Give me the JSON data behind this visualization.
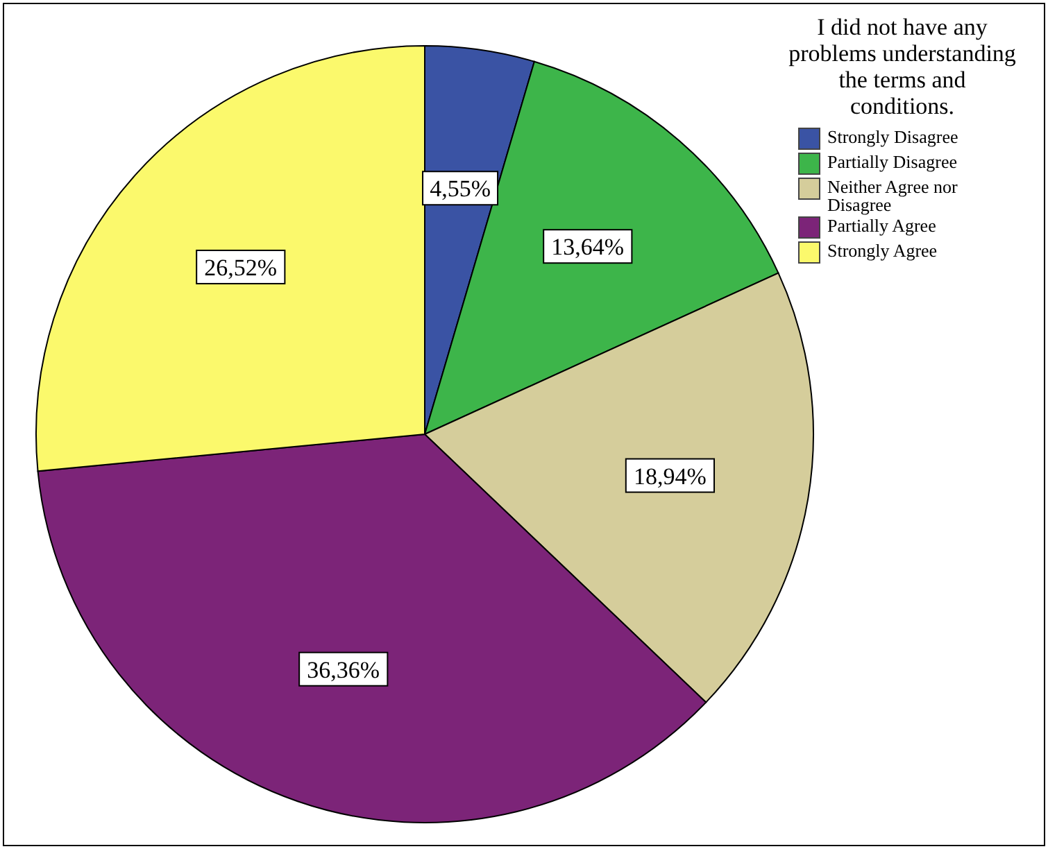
{
  "chart_data": {
    "type": "pie",
    "legend_title": "I did not have any problems understanding the terms and conditions.",
    "categories": [
      "Strongly Disagree",
      "Partially Disagree",
      "Neither Agree nor Disagree",
      "Partially Agree",
      "Strongly Agree"
    ],
    "values": [
      4.55,
      13.64,
      18.94,
      36.36,
      26.52
    ],
    "colors": [
      "#3a53a4",
      "#3db54a",
      "#d5cd9b",
      "#7c2478",
      "#fbf96c"
    ],
    "value_labels": [
      "4,55%",
      "13,64%",
      "18,94%",
      "36,36%",
      "26,52%"
    ],
    "legend": "top right"
  }
}
